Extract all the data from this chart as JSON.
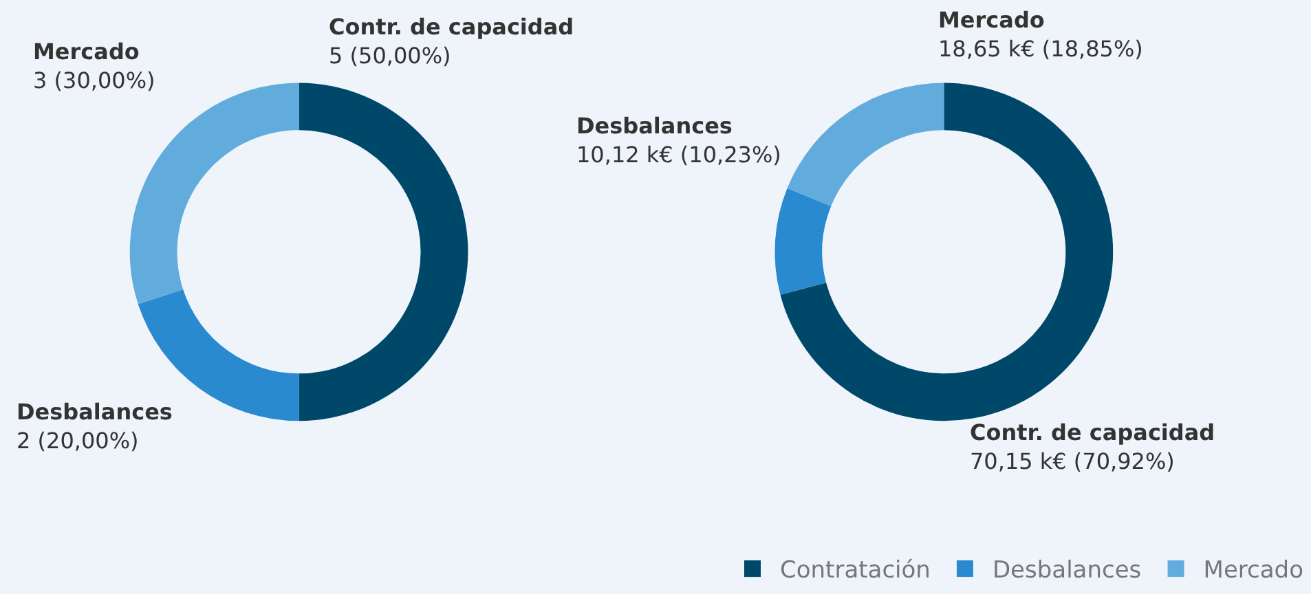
{
  "chart_data": [
    {
      "type": "donut",
      "categories": [
        "Contratación",
        "Desbalances",
        "Mercado"
      ],
      "values": [
        5,
        2,
        3
      ],
      "colors": [
        "#00486a",
        "#2a8ad0",
        "#62acdd"
      ],
      "value_labels": [
        "Contr. de capacidad\n5 (50,00%)",
        "Desbalances\n2 (20,00%)",
        "Mercado\n3 (30,00%)"
      ],
      "legend": "bottom right"
    },
    {
      "type": "donut",
      "categories": [
        "Contr. de capacidad",
        "Desbalances",
        "Mercado"
      ],
      "values": [
        70.15,
        10.12,
        18.65
      ],
      "colors": [
        "#00486a",
        "#2a8ad0",
        "#62acdd"
      ],
      "value_labels": [
        "70,15 k€ (70,92%)",
        "10,12 k€ (10,23%)",
        "18,65 k€ (18,85%)"
      ]
    }
  ]
}
